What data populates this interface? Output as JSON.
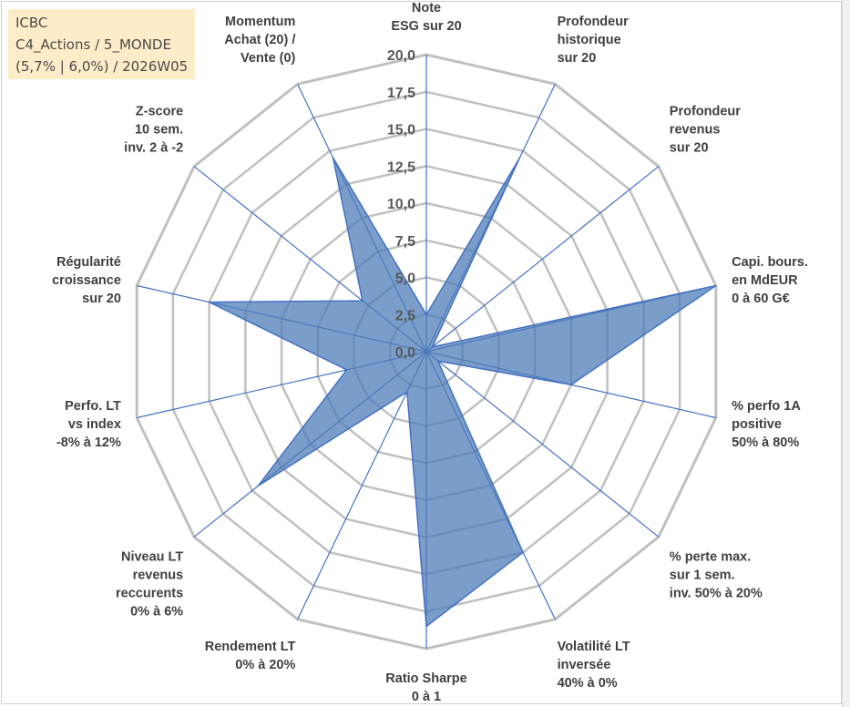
{
  "info": {
    "line1": "ICBC",
    "line2": "C4_Actions / 5_MONDE",
    "line3": "(5,7% | 6,0%) / 2026W05"
  },
  "colors": {
    "fill": "#4f7cb7",
    "stroke": "#4472c4",
    "grid": "#c0c0c0",
    "spoke": "#4472c4"
  },
  "chart_data": {
    "type": "radar",
    "title": "",
    "rlim": [
      0,
      20
    ],
    "ticks": [
      "0,0",
      "2,5",
      "5,0",
      "7,5",
      "10,0",
      "12,5",
      "15,0",
      "17,5",
      "20,0"
    ],
    "categories": [
      [
        "Note",
        "ESG sur 20"
      ],
      [
        "Profondeur",
        "historique",
        "sur 20"
      ],
      [
        "Profondeur",
        "revenus",
        "sur 20"
      ],
      [
        "Capi. bours.",
        "en MdEUR",
        "0 à 60 G€"
      ],
      [
        "% perfo 1A",
        "positive",
        "50% à 80%"
      ],
      [
        "% perte max.",
        "sur 1 sem.",
        "inv. 50% à 20%"
      ],
      [
        "Volatilité LT",
        "inversée",
        "40% à 0%"
      ],
      [
        "Ratio Sharpe",
        "0 à 1"
      ],
      [
        "Rendement LT",
        "0% à 20%"
      ],
      [
        "Niveau LT",
        "revenus",
        "reccurents",
        "0% à 6%"
      ],
      [
        "Perfo. LT",
        "vs index",
        "-8% à 12%"
      ],
      [
        "Régularité",
        "croissance",
        "sur 20"
      ],
      [
        "Z-score",
        "10 sem.",
        "inv. 2 à -2"
      ],
      [
        "Momentum",
        "Achat (20) /",
        "Vente (0)"
      ]
    ],
    "series": [
      {
        "name": "ICBC",
        "values": [
          2.5,
          14.5,
          0.5,
          20.0,
          10.0,
          1.0,
          15.0,
          18.5,
          3.0,
          14.5,
          5.5,
          15.0,
          5.5,
          14.5
        ]
      }
    ]
  }
}
